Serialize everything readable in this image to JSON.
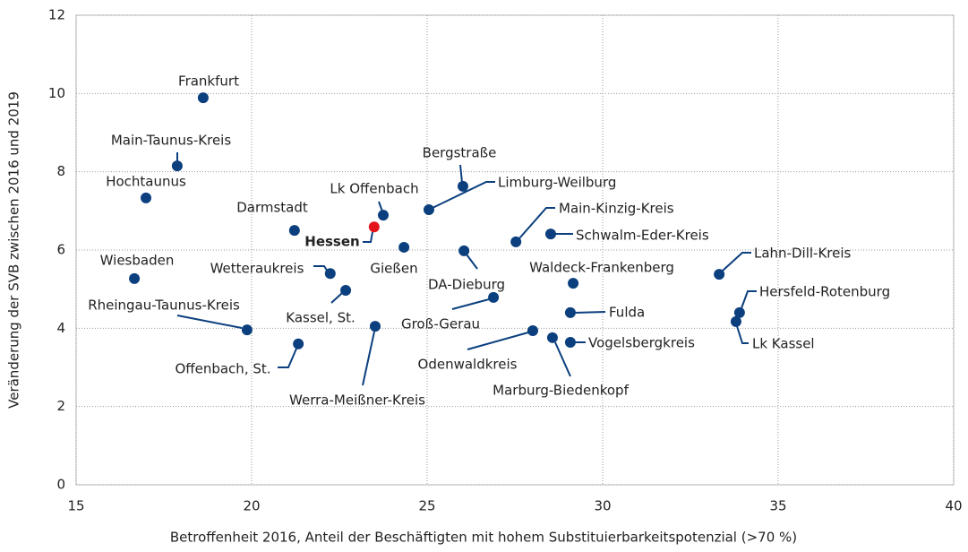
{
  "chart_data": {
    "type": "scatter",
    "xlabel": "Betroffenheit 2016, Anteil der Beschäftigten mit hohem Substituierbarkeitspotenzial (>70 %)",
    "ylabel": "Veränderung der SVB zwischen 2016 und 2019",
    "labels": [
      "Frankfurt",
      "Main-Taunus-Kreis",
      "Hochtaunus",
      "Wiesbaden",
      "Rheingau-Taunus-Kreis",
      "Offenbach, St.",
      "Darmstadt",
      "Wetteraukreis",
      "Kassel, St.",
      "Werra-Meißner-Kreis",
      "Hessen",
      "Lk Offenbach",
      "Gießen",
      "Bergstraße",
      "Limburg-Weilburg",
      "DA-Dieburg",
      "Groß-Gerau",
      "Main-Kinzig-Kreis",
      "Schwalm-Eder-Kreis",
      "Waldeck-Frankenberg",
      "Fulda",
      "Odenwaldkreis",
      "Marburg-Biedenkopf",
      "Vogelsbergkreis",
      "Lahn-Dill-Kreis",
      "Hersfeld-Rotenburg",
      "Lk Kassel"
    ],
    "x": [
      18.62,
      17.88,
      16.99,
      16.66,
      19.87,
      21.33,
      21.22,
      22.24,
      22.68,
      23.52,
      23.49,
      23.75,
      24.34,
      26.02,
      25.05,
      26.05,
      26.89,
      27.53,
      28.52,
      29.16,
      29.08,
      28.01,
      28.57,
      29.08,
      33.32,
      33.9,
      33.8
    ],
    "values": [
      9.89,
      8.15,
      7.33,
      5.27,
      3.96,
      3.6,
      6.5,
      5.4,
      4.97,
      4.05,
      6.59,
      6.89,
      6.07,
      7.63,
      7.03,
      5.98,
      4.79,
      6.21,
      6.41,
      5.15,
      4.4,
      3.94,
      3.76,
      3.64,
      5.38,
      4.4,
      4.17
    ],
    "point_colors": [
      "#0b3f7e",
      "#0b3f7e",
      "#0b3f7e",
      "#0b3f7e",
      "#0b3f7e",
      "#0b3f7e",
      "#0b3f7e",
      "#0b3f7e",
      "#0b3f7e",
      "#0b3f7e",
      "#e3141c",
      "#0b3f7e",
      "#0b3f7e",
      "#0b3f7e",
      "#0b3f7e",
      "#0b3f7e",
      "#0b3f7e",
      "#0b3f7e",
      "#0b3f7e",
      "#0b3f7e",
      "#0b3f7e",
      "#0b3f7e",
      "#0b3f7e",
      "#0b3f7e",
      "#0b3f7e",
      "#0b3f7e",
      "#0b3f7e"
    ],
    "color": "#0b3f7e",
    "xlim": [
      15,
      40
    ],
    "xticks": [
      15,
      20,
      25,
      30,
      35,
      40
    ],
    "ylim": [
      0,
      12
    ],
    "yticks": [
      0,
      2,
      4,
      6,
      8,
      10,
      12
    ],
    "grid": true
  }
}
